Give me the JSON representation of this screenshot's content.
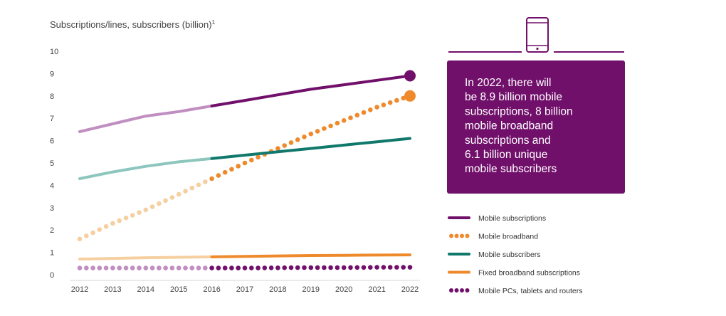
{
  "chart_data": {
    "type": "line",
    "title": "Subscriptions/lines, subscribers (billion)",
    "title_superscript": "1",
    "x": [
      2012,
      2013,
      2014,
      2015,
      2016,
      2017,
      2018,
      2019,
      2020,
      2021,
      2022
    ],
    "ylim": [
      0,
      10
    ],
    "yticks": [
      0,
      1,
      2,
      3,
      4,
      5,
      6,
      7,
      8,
      9,
      10
    ],
    "forecast_from": 2016,
    "series": [
      {
        "name": "Mobile subscriptions",
        "style": "solid",
        "color": "#71106b",
        "history_color": "#c08ec0",
        "end_marker": true,
        "values": [
          6.4,
          6.75,
          7.1,
          7.3,
          7.55,
          7.8,
          8.05,
          8.3,
          8.5,
          8.7,
          8.9
        ]
      },
      {
        "name": "Mobile broadband",
        "style": "dotted",
        "color": "#ef8a2c",
        "history_color": "#f6cfa0",
        "end_marker": true,
        "values": [
          1.6,
          2.3,
          2.9,
          3.6,
          4.3,
          5.0,
          5.65,
          6.3,
          6.9,
          7.5,
          8.0
        ]
      },
      {
        "name": "Mobile subscribers",
        "style": "solid",
        "color": "#11786c",
        "history_color": "#8cc6bd",
        "end_marker": false,
        "values": [
          4.3,
          4.6,
          4.85,
          5.05,
          5.2,
          5.35,
          5.5,
          5.65,
          5.8,
          5.95,
          6.1
        ]
      },
      {
        "name": "Fixed broadband subscriptions",
        "style": "solid",
        "color": "#ef8a2c",
        "history_color": "#f6cfa0",
        "end_marker": false,
        "values": [
          0.7,
          0.73,
          0.76,
          0.78,
          0.8,
          0.82,
          0.84,
          0.86,
          0.87,
          0.88,
          0.89
        ]
      },
      {
        "name": "Mobile PCs, tablets and routers",
        "style": "dotted",
        "color": "#71106b",
        "history_color": "#c08ec0",
        "end_marker": false,
        "values": [
          0.3,
          0.3,
          0.3,
          0.3,
          0.3,
          0.3,
          0.31,
          0.32,
          0.32,
          0.33,
          0.33
        ]
      }
    ]
  },
  "callout": {
    "lines": [
      "In 2022, there will",
      "be 8.9 billion mobile",
      "subscriptions, 8 billion",
      "mobile broadband",
      "subscriptions and",
      "6.1 billion unique",
      "mobile subscribers"
    ],
    "bg_color": "#71106b",
    "text_color": "#ffffff",
    "icon": "smartphone-icon"
  }
}
